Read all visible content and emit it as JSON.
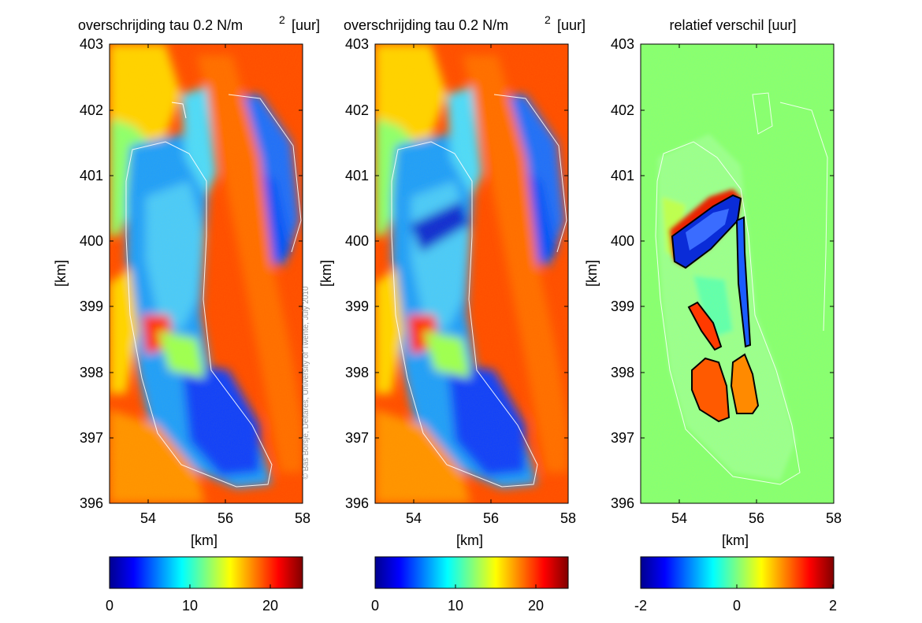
{
  "watermark": "© Bas Borsje, Deltares, University of Twente, July 2010",
  "chart_data": [
    {
      "type": "heatmap",
      "title": "overschrijding tau 0.2 N/m",
      "title_sup": "2",
      "title_unit": "[uur]",
      "xlabel": "[km]",
      "ylabel": "[km]",
      "xlim": [
        53,
        58
      ],
      "ylim": [
        396,
        403
      ],
      "xticks": [
        "54",
        "56",
        "58"
      ],
      "yticks": [
        "396",
        "397",
        "398",
        "399",
        "400",
        "401",
        "402",
        "403"
      ],
      "colorbar": {
        "min": 0,
        "max": 24,
        "ticks": [
          "0",
          "10",
          "20"
        ],
        "colormap": "jet"
      }
    },
    {
      "type": "heatmap",
      "title": "overschrijding tau 0.2 N/m",
      "title_sup": "2",
      "title_unit": "[uur]",
      "xlabel": "[km]",
      "ylabel": "[km]",
      "xlim": [
        53,
        58
      ],
      "ylim": [
        396,
        403
      ],
      "xticks": [
        "54",
        "56",
        "58"
      ],
      "yticks": [
        "396",
        "397",
        "398",
        "399",
        "400",
        "401",
        "402",
        "403"
      ],
      "colorbar": {
        "min": 0,
        "max": 24,
        "ticks": [
          "0",
          "10",
          "20"
        ],
        "colormap": "jet"
      }
    },
    {
      "type": "heatmap",
      "title": "relatief verschil [uur]",
      "title_sup": "",
      "title_unit": "",
      "xlabel": "[km]",
      "ylabel": "[km]",
      "xlim": [
        53,
        58
      ],
      "ylim": [
        396,
        403
      ],
      "xticks": [
        "54",
        "56",
        "58"
      ],
      "yticks": [
        "396",
        "397",
        "398",
        "399",
        "400",
        "401",
        "402",
        "403"
      ],
      "colorbar": {
        "min": -2,
        "max": 2,
        "ticks": [
          "-2",
          "0",
          "2"
        ],
        "colormap": "jet"
      }
    }
  ]
}
